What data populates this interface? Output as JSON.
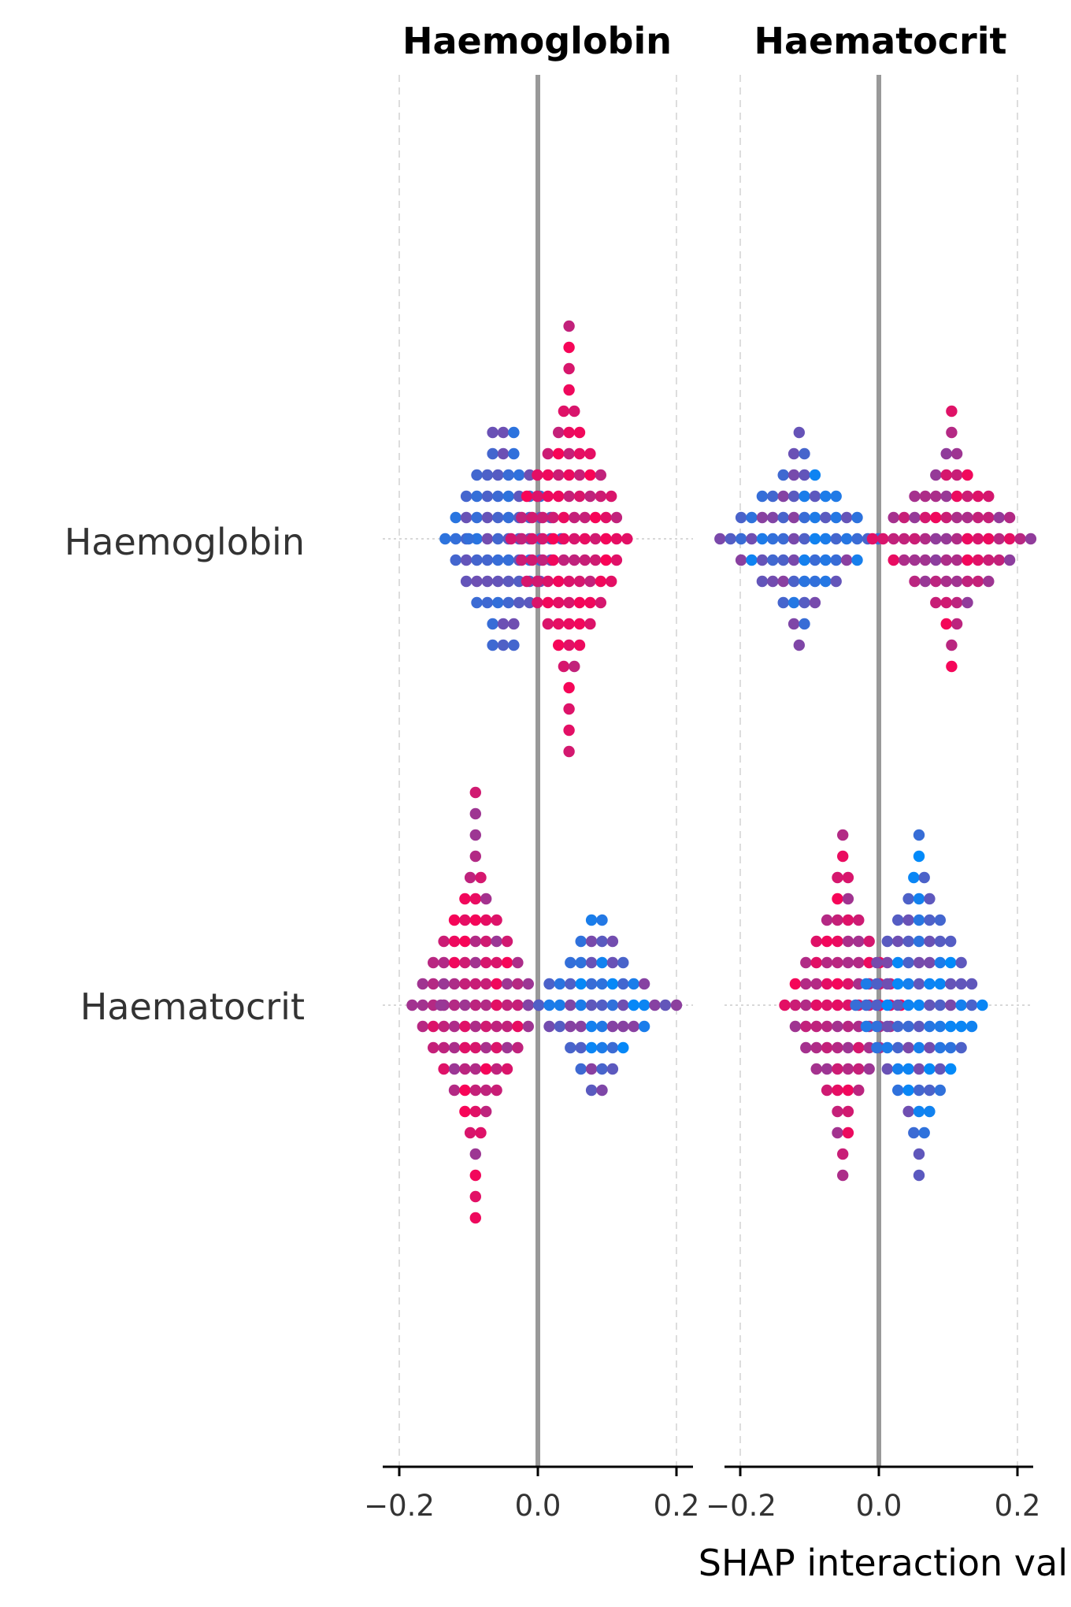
{
  "chart_data": {
    "type": "scatter",
    "subtype": "shap-interaction-beeswarm-matrix",
    "features": [
      "Haemoglobin",
      "Haematocrit"
    ],
    "column_titles": [
      "Haemoglobin",
      "Haematocrit"
    ],
    "row_labels": [
      "Haemoglobin",
      "Haematocrit"
    ],
    "xlabel": "SHAP interaction val",
    "xlim": [
      -0.25,
      0.23
    ],
    "xticks": [
      -0.2,
      0.0,
      0.2
    ],
    "xtick_labels": [
      "−0.2",
      "0.0",
      "0.2"
    ],
    "grid": true,
    "color_scale": {
      "low": "#008bfb",
      "high": "#ff0052"
    },
    "panels": [
      {
        "row": "Haemoglobin",
        "col": "Haemoglobin",
        "clusters": [
          {
            "x": -0.05,
            "counts": [
              3,
              3,
              6,
              8,
              10,
              12,
              10,
              8,
              6,
              3,
              3
            ],
            "color": [
              0.15,
              0.45
            ]
          },
          {
            "x": 0.045,
            "counts": [
              1,
              1,
              1,
              1,
              2,
              3,
              5,
              7,
              9,
              10,
              12,
              10,
              9,
              7,
              5,
              3,
              2,
              1,
              1,
              1,
              1
            ],
            "color": [
              0.75,
              0.98
            ]
          }
        ],
        "outliers": [
          {
            "x": -0.1,
            "c": 0.2
          }
        ]
      },
      {
        "row": "Haemoglobin",
        "col": "Haematocrit",
        "clusters": [
          {
            "x": -0.115,
            "counts": [
              1,
              2,
              4,
              8,
              12,
              16,
              12,
              8,
              4,
              2,
              1
            ],
            "color": [
              0.05,
              0.55
            ]
          },
          {
            "x": 0.105,
            "counts": [
              1,
              1,
              2,
              4,
              8,
              12,
              16,
              12,
              8,
              4,
              2,
              1,
              1
            ],
            "color": [
              0.55,
              0.98
            ]
          }
        ],
        "outliers": []
      },
      {
        "row": "Haematocrit",
        "col": "Haemoglobin",
        "clusters": [
          {
            "x": -0.09,
            "counts": [
              1,
              1,
              1,
              1,
              2,
              3,
              5,
              7,
              9,
              11,
              13,
              11,
              9,
              7,
              5,
              3,
              2,
              1,
              1,
              1,
              1
            ],
            "color": [
              0.6,
              0.98
            ]
          },
          {
            "x": 0.085,
            "counts": [
              2,
              4,
              6,
              10,
              14,
              10,
              6,
              4,
              2
            ],
            "color": [
              0.0,
              0.55
            ]
          }
        ],
        "outliers": [
          {
            "x": 0.2,
            "c": 0.55
          },
          {
            "x": -0.14,
            "c": 0.6
          }
        ]
      },
      {
        "row": "Haematocrit",
        "col": "Haematocrit",
        "clusters": [
          {
            "x": -0.052,
            "counts": [
              1,
              1,
              2,
              2,
              4,
              6,
              8,
              10,
              12,
              10,
              8,
              6,
              4,
              2,
              2,
              1,
              1
            ],
            "color": [
              0.6,
              0.98
            ]
          },
          {
            "x": 0.058,
            "counts": [
              1,
              1,
              2,
              3,
              5,
              7,
              9,
              11,
              13,
              11,
              9,
              7,
              5,
              3,
              2,
              1,
              1
            ],
            "color": [
              0.0,
              0.5
            ]
          }
        ],
        "outliers": []
      }
    ]
  }
}
